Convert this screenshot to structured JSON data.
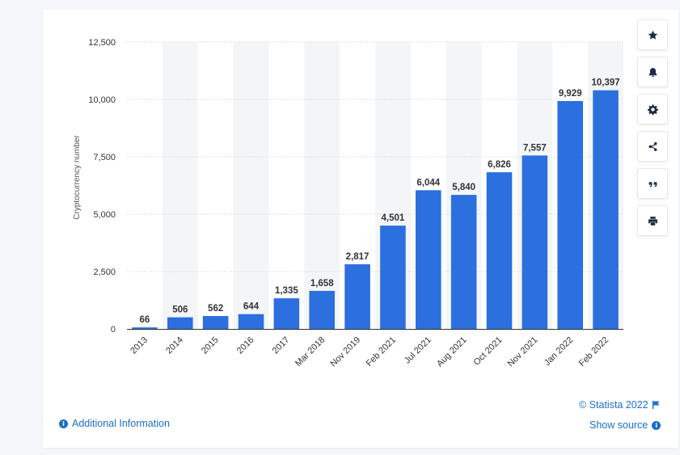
{
  "toolbar": {
    "icons": [
      "star-icon",
      "bell-icon",
      "gear-icon",
      "share-icon",
      "quote-icon",
      "print-icon"
    ]
  },
  "footer": {
    "additional_info": "Additional Information",
    "copyright": "© Statista 2022",
    "show_source": "Show source"
  },
  "colors": {
    "bar": "#2c6fde",
    "band": "#f4f5f7",
    "link": "#1a6fc9"
  },
  "chart_data": {
    "type": "bar",
    "categories": [
      "2013",
      "2014",
      "2015",
      "2016",
      "2017",
      "Mar 2018",
      "Nov 2019",
      "Feb 2021",
      "Jul 2021",
      "Aug 2021",
      "Oct 2021",
      "Nov 2021",
      "Jan 2022",
      "Feb 2022"
    ],
    "values": [
      66,
      506,
      562,
      644,
      1335,
      1658,
      2817,
      4501,
      6044,
      5840,
      6826,
      7557,
      9929,
      10397
    ],
    "value_labels": [
      "66",
      "506",
      "562",
      "644",
      "1,335",
      "1,658",
      "2,817",
      "4,501",
      "6,044",
      "5,840",
      "6,826",
      "7,557",
      "9,929",
      "10,397"
    ],
    "ylabel": "Cryptocurrency number",
    "xlabel": "",
    "ylim": [
      0,
      12500
    ],
    "yticks": [
      0,
      2500,
      5000,
      7500,
      10000,
      12500
    ],
    "ytick_labels": [
      "0",
      "2,500",
      "5,000",
      "7,500",
      "10,000",
      "12,500"
    ],
    "grid": true,
    "alternating_bands": true
  }
}
